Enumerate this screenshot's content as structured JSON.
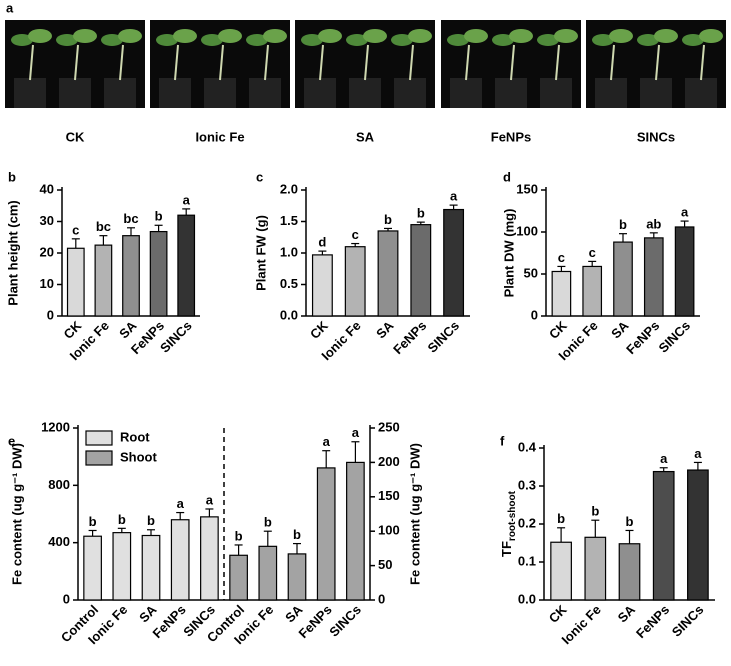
{
  "panel_a": {
    "label": "a",
    "photos": [
      "CK",
      "Ionic Fe",
      "SA",
      "FeNPs",
      "SINCs"
    ]
  },
  "chart_data": [
    {
      "type": "bar",
      "panel_label": "b",
      "y_label": "Plant height (cm)",
      "categories": [
        "CK",
        "Ionic Fe",
        "SA",
        "FeNPs",
        "SINCs"
      ],
      "values": [
        21.5,
        22.5,
        25.5,
        26.8,
        32
      ],
      "errors": [
        3,
        3,
        2.5,
        2,
        2
      ],
      "letters": [
        "c",
        "bc",
        "bc",
        "b",
        "a"
      ],
      "colors": [
        "#d9d9d9",
        "#b3b3b3",
        "#8f8f8f",
        "#6b6b6b",
        "#333333"
      ],
      "ylim": [
        0,
        40
      ],
      "yticks": [
        0,
        10,
        20,
        30,
        40
      ]
    },
    {
      "type": "bar",
      "panel_label": "c",
      "y_label": "Plant FW (g)",
      "categories": [
        "CK",
        "Ionic Fe",
        "SA",
        "FeNPs",
        "SINCs"
      ],
      "values": [
        0.97,
        1.1,
        1.35,
        1.45,
        1.69
      ],
      "errors": [
        0.06,
        0.05,
        0.04,
        0.04,
        0.07
      ],
      "letters": [
        "d",
        "c",
        "b",
        "b",
        "a"
      ],
      "colors": [
        "#d9d9d9",
        "#b3b3b3",
        "#8f8f8f",
        "#6b6b6b",
        "#333333"
      ],
      "ylim": [
        0,
        2
      ],
      "yticks": [
        {
          "value": 0,
          "label": "0.0"
        },
        0.5,
        {
          "value": 1,
          "label": "1.0"
        },
        1.5,
        {
          "value": 2,
          "label": "2.0"
        }
      ]
    },
    {
      "type": "bar",
      "panel_label": "d",
      "y_label": "Plant DW (mg)",
      "categories": [
        "CK",
        "Ionic Fe",
        "SA",
        "FeNPs",
        "SINCs"
      ],
      "values": [
        53,
        59,
        88,
        93,
        106
      ],
      "errors": [
        6,
        6,
        10,
        6,
        7
      ],
      "letters": [
        "c",
        "c",
        "b",
        "ab",
        "a"
      ],
      "colors": [
        "#d9d9d9",
        "#b3b3b3",
        "#8f8f8f",
        "#6b6b6b",
        "#333333"
      ],
      "ylim": [
        0,
        150
      ],
      "yticks": [
        0,
        50,
        100,
        150
      ]
    },
    {
      "type": "bar",
      "panel_label": "e",
      "y_label": "Fe content (ug g⁻¹ DW)",
      "y2_label": "Fe content (ug g⁻¹ DW)",
      "categories": [
        "Control",
        "Ionic Fe",
        "SA",
        "FeNPs",
        "SINCs",
        "Control",
        "Ionic Fe",
        "SA",
        "FeNPs",
        "SINCs"
      ],
      "series": [
        {
          "name": "Root",
          "color": "#e0e0e0",
          "values": [
            445,
            470,
            450,
            560,
            580,
            null,
            null,
            null,
            null,
            null
          ],
          "errors": [
            40,
            30,
            40,
            50,
            55,
            null,
            null,
            null,
            null,
            null
          ],
          "letters": [
            "b",
            "b",
            "b",
            "a",
            "a",
            null,
            null,
            null,
            null,
            null
          ]
        },
        {
          "name": "Shoot",
          "color": "#a3a3a3",
          "axis": "y2",
          "values": [
            null,
            null,
            null,
            null,
            null,
            65,
            78,
            67,
            192,
            200
          ],
          "errors": [
            null,
            null,
            null,
            null,
            null,
            15,
            22,
            15,
            25,
            30
          ],
          "letters": [
            null,
            null,
            null,
            null,
            null,
            "b",
            "b",
            "b",
            "a",
            "a"
          ]
        }
      ],
      "ylim": [
        0,
        1200
      ],
      "yticks": [
        0,
        400,
        800,
        1200
      ],
      "y2lim": [
        0,
        250
      ],
      "y2ticks": [
        0,
        50,
        100,
        150,
        200,
        250
      ]
    },
    {
      "type": "bar",
      "panel_label": "f",
      "y_label": "TF",
      "y_label_subscript": "root-shoot",
      "categories": [
        "CK",
        "Ionic Fe",
        "SA",
        "FeNPs",
        "SINCs"
      ],
      "values": [
        0.152,
        0.165,
        0.148,
        0.338,
        0.342
      ],
      "errors": [
        0.038,
        0.045,
        0.035,
        0.01,
        0.02
      ],
      "letters": [
        "b",
        "b",
        "b",
        "a",
        "a"
      ],
      "colors": [
        "#d9d9d9",
        "#b3b3b3",
        "#8f8f8f",
        "#4d4d4d",
        "#333333"
      ],
      "ylim": [
        0,
        0.4
      ],
      "yticks": [
        {
          "value": 0,
          "label": "0.0"
        },
        0.1,
        0.2,
        0.3,
        0.4
      ]
    }
  ]
}
